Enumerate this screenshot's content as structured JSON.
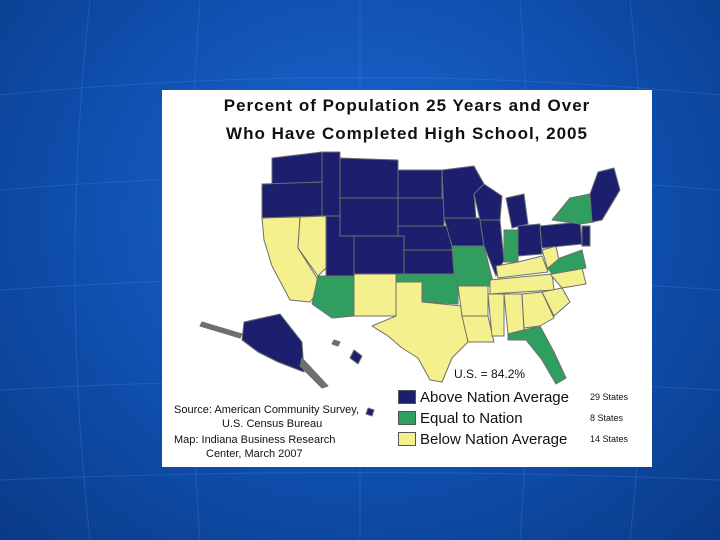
{
  "title": {
    "line1": "Percent of Population 25 Years and Over",
    "line2": "Who Have Completed High School, 2005"
  },
  "us_average": "U.S. = 84.2%",
  "legend": [
    {
      "label": "Above Nation Average",
      "count": "29 States",
      "color": "#1b1f6e"
    },
    {
      "label": "Equal to Nation",
      "count": "8 States",
      "color": "#2f9e5e"
    },
    {
      "label": "Below Nation Average",
      "count": "14 States",
      "color": "#f5f08e"
    }
  ],
  "source": {
    "line1": "Source: American Community Survey,",
    "line2": "U.S. Census Bureau",
    "line3": "Map: Indiana Business Research",
    "line4": "Center, March 2007"
  },
  "colors": {
    "above": "#1b1f6e",
    "equal": "#2f9e5e",
    "below": "#f5f08e",
    "outline": "#6f6f6f"
  }
}
